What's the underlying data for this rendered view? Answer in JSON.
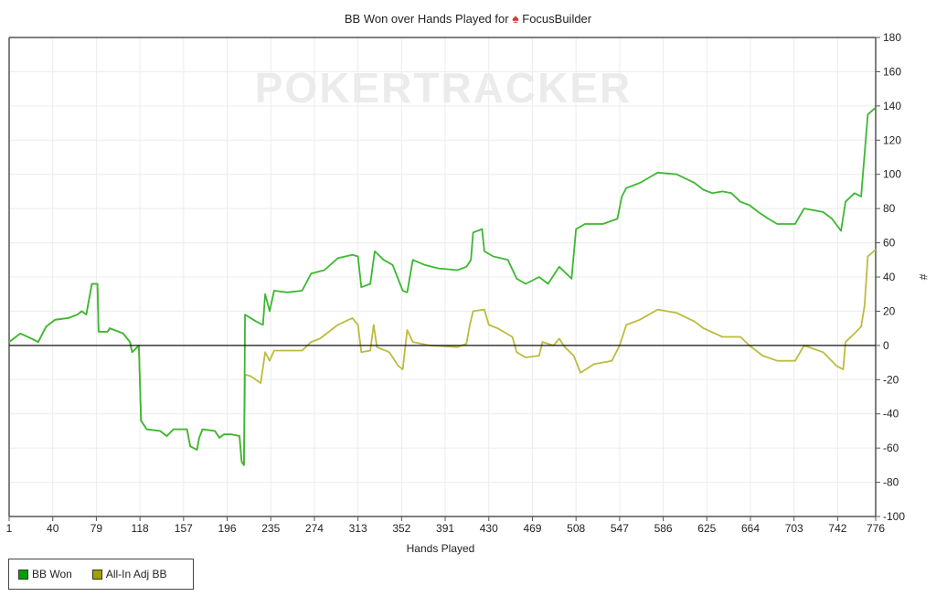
{
  "chart_data": {
    "type": "line",
    "title_prefix": "BB Won over Hands Played for",
    "player": "FocusBuilder",
    "watermark": "POKERTRACKER",
    "xlabel": "Hands Played",
    "ylabel": "#",
    "xlim": [
      1,
      776
    ],
    "ylim": [
      -100,
      180
    ],
    "x_ticks": [
      1,
      40,
      79,
      118,
      157,
      196,
      235,
      274,
      313,
      352,
      391,
      430,
      469,
      508,
      547,
      586,
      625,
      664,
      703,
      742,
      776
    ],
    "y_ticks": [
      -100,
      -80,
      -60,
      -40,
      -20,
      0,
      20,
      40,
      60,
      80,
      100,
      120,
      140,
      160,
      180
    ],
    "grid": true,
    "legend_position": "bottom-left",
    "series": [
      {
        "name": "BB Won",
        "color": "#3cb832",
        "swatch": "#00a000",
        "points": [
          [
            1,
            2
          ],
          [
            11,
            7
          ],
          [
            21,
            4
          ],
          [
            27,
            2
          ],
          [
            34,
            11
          ],
          [
            42,
            15
          ],
          [
            54,
            16
          ],
          [
            62,
            18
          ],
          [
            66,
            20
          ],
          [
            70,
            18
          ],
          [
            75,
            36
          ],
          [
            80,
            36
          ],
          [
            81,
            8
          ],
          [
            89,
            8
          ],
          [
            91,
            10
          ],
          [
            103,
            7
          ],
          [
            109,
            2
          ],
          [
            111,
            -4
          ],
          [
            117,
            0
          ],
          [
            119,
            -44
          ],
          [
            124,
            -49
          ],
          [
            136,
            -50
          ],
          [
            142,
            -53
          ],
          [
            148,
            -49
          ],
          [
            160,
            -49
          ],
          [
            163,
            -59
          ],
          [
            169,
            -61
          ],
          [
            171,
            -54
          ],
          [
            174,
            -49
          ],
          [
            185,
            -50
          ],
          [
            189,
            -54
          ],
          [
            193,
            -52
          ],
          [
            200,
            -52
          ],
          [
            207,
            -53
          ],
          [
            209,
            -68
          ],
          [
            211,
            -70
          ],
          [
            212,
            18
          ],
          [
            222,
            14
          ],
          [
            228,
            12
          ],
          [
            230,
            30
          ],
          [
            234,
            20
          ],
          [
            238,
            32
          ],
          [
            250,
            31
          ],
          [
            263,
            32
          ],
          [
            271,
            42
          ],
          [
            283,
            44
          ],
          [
            295,
            51
          ],
          [
            308,
            53
          ],
          [
            313,
            52
          ],
          [
            316,
            34
          ],
          [
            324,
            36
          ],
          [
            328,
            55
          ],
          [
            336,
            50
          ],
          [
            344,
            47
          ],
          [
            353,
            32
          ],
          [
            357,
            31
          ],
          [
            362,
            50
          ],
          [
            373,
            47
          ],
          [
            385,
            45
          ],
          [
            402,
            44
          ],
          [
            410,
            46
          ],
          [
            414,
            50
          ],
          [
            416,
            66
          ],
          [
            424,
            68
          ],
          [
            426,
            55
          ],
          [
            434,
            52
          ],
          [
            447,
            50
          ],
          [
            455,
            39
          ],
          [
            463,
            36
          ],
          [
            475,
            40
          ],
          [
            483,
            36
          ],
          [
            493,
            46
          ],
          [
            504,
            39
          ],
          [
            508,
            68
          ],
          [
            516,
            71
          ],
          [
            532,
            71
          ],
          [
            545,
            74
          ],
          [
            549,
            87
          ],
          [
            553,
            92
          ],
          [
            565,
            95
          ],
          [
            573,
            98
          ],
          [
            581,
            101
          ],
          [
            598,
            100
          ],
          [
            614,
            95
          ],
          [
            622,
            91
          ],
          [
            630,
            89
          ],
          [
            639,
            90
          ],
          [
            647,
            89
          ],
          [
            655,
            84
          ],
          [
            663,
            82
          ],
          [
            671,
            78
          ],
          [
            680,
            74
          ],
          [
            688,
            71
          ],
          [
            704,
            71
          ],
          [
            712,
            80
          ],
          [
            729,
            78
          ],
          [
            737,
            74
          ],
          [
            745,
            67
          ],
          [
            749,
            84
          ],
          [
            757,
            89
          ],
          [
            763,
            87
          ],
          [
            765,
            103
          ],
          [
            769,
            135
          ],
          [
            776,
            139
          ]
        ]
      },
      {
        "name": "All-In Adj BB",
        "color": "#bcbc3c",
        "swatch": "#a0a000",
        "points": [
          [
            1,
            2
          ],
          [
            11,
            7
          ],
          [
            21,
            4
          ],
          [
            27,
            2
          ],
          [
            34,
            11
          ],
          [
            42,
            15
          ],
          [
            54,
            16
          ],
          [
            62,
            18
          ],
          [
            66,
            20
          ],
          [
            70,
            18
          ],
          [
            75,
            36
          ],
          [
            80,
            36
          ],
          [
            81,
            8
          ],
          [
            89,
            8
          ],
          [
            91,
            10
          ],
          [
            103,
            7
          ],
          [
            109,
            2
          ],
          [
            111,
            -4
          ],
          [
            117,
            0
          ],
          [
            119,
            -44
          ],
          [
            124,
            -49
          ],
          [
            136,
            -50
          ],
          [
            142,
            -53
          ],
          [
            148,
            -49
          ],
          [
            160,
            -49
          ],
          [
            163,
            -59
          ],
          [
            169,
            -61
          ],
          [
            171,
            -54
          ],
          [
            174,
            -49
          ],
          [
            185,
            -50
          ],
          [
            189,
            -54
          ],
          [
            193,
            -52
          ],
          [
            200,
            -52
          ],
          [
            207,
            -53
          ],
          [
            209,
            -68
          ],
          [
            211,
            -70
          ],
          [
            212,
            -17
          ],
          [
            217,
            -18
          ],
          [
            226,
            -22
          ],
          [
            230,
            -4
          ],
          [
            234,
            -9
          ],
          [
            238,
            -3
          ],
          [
            263,
            -3
          ],
          [
            271,
            2
          ],
          [
            279,
            4
          ],
          [
            295,
            12
          ],
          [
            308,
            16
          ],
          [
            313,
            12
          ],
          [
            316,
            -4
          ],
          [
            324,
            -3
          ],
          [
            327,
            12
          ],
          [
            330,
            -1
          ],
          [
            341,
            -4
          ],
          [
            349,
            -12
          ],
          [
            353,
            -14
          ],
          [
            357,
            9
          ],
          [
            362,
            2
          ],
          [
            377,
            0
          ],
          [
            402,
            -1
          ],
          [
            410,
            1
          ],
          [
            413,
            12
          ],
          [
            416,
            20
          ],
          [
            426,
            21
          ],
          [
            430,
            12
          ],
          [
            438,
            10
          ],
          [
            451,
            5
          ],
          [
            455,
            -4
          ],
          [
            463,
            -7
          ],
          [
            475,
            -6
          ],
          [
            478,
            2
          ],
          [
            488,
            0
          ],
          [
            493,
            4
          ],
          [
            498,
            -1
          ],
          [
            506,
            -6
          ],
          [
            512,
            -16
          ],
          [
            524,
            -11
          ],
          [
            540,
            -9
          ],
          [
            547,
            0
          ],
          [
            553,
            12
          ],
          [
            565,
            15
          ],
          [
            581,
            21
          ],
          [
            598,
            19
          ],
          [
            614,
            14
          ],
          [
            622,
            10
          ],
          [
            639,
            5
          ],
          [
            655,
            5
          ],
          [
            663,
            0
          ],
          [
            675,
            -6
          ],
          [
            688,
            -9
          ],
          [
            704,
            -9
          ],
          [
            712,
            0
          ],
          [
            729,
            -4
          ],
          [
            741,
            -12
          ],
          [
            747,
            -14
          ],
          [
            749,
            2
          ],
          [
            757,
            7
          ],
          [
            763,
            11
          ],
          [
            766,
            23
          ],
          [
            769,
            52
          ],
          [
            776,
            56
          ]
        ]
      }
    ]
  }
}
